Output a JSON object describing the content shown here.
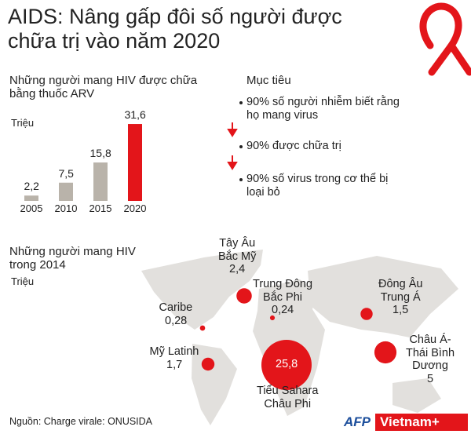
{
  "header": {
    "title": "AIDS: Nâng gấp đôi số người được chữa trị vào năm 2020"
  },
  "chart_data": [
    {
      "type": "bar",
      "title": "Những người mang HIV được chữa bằng thuốc ARV",
      "ylabel": "Triệu",
      "categories": [
        "2005",
        "2010",
        "2015",
        "2020"
      ],
      "values": [
        2.2,
        7.5,
        15.8,
        31.6
      ],
      "value_labels": [
        "2,2",
        "7,5",
        "15,8",
        "31,6"
      ],
      "colors": [
        "#b9b3aa",
        "#b9b3aa",
        "#b9b3aa",
        "#e3151a"
      ]
    },
    {
      "type": "bubble",
      "title": "Những người mang HIV trong 2014",
      "ylabel": "Triệu",
      "categories": [
        "Tây Âu\nBắc Mỹ",
        "Trung Đông\nBắc Phi",
        "Đông Âu\nTrung Á",
        "Caribe",
        "Châu Á-\nThái Bình\nDương",
        "Mỹ Latinh",
        "Tiểu Sahara\nChâu Phi"
      ],
      "values": [
        2.4,
        0.24,
        1.5,
        0.28,
        5,
        1.7,
        25.8
      ],
      "value_labels": [
        "2,4",
        "0,24",
        "1,5",
        "0,28",
        "5",
        "1,7",
        "25,8"
      ],
      "color": "#e3151a"
    }
  ],
  "goals": {
    "title": "Mục tiêu",
    "items": [
      "90% số người nhiễm biết rằng họ mang virus",
      "90% được chữa trị",
      "90% số virus trong cơ thể bị loại bỏ"
    ]
  },
  "source": "Nguồn: Charge virale: ONUSIDA",
  "logos": [
    "AFP",
    "Vietnam+"
  ]
}
